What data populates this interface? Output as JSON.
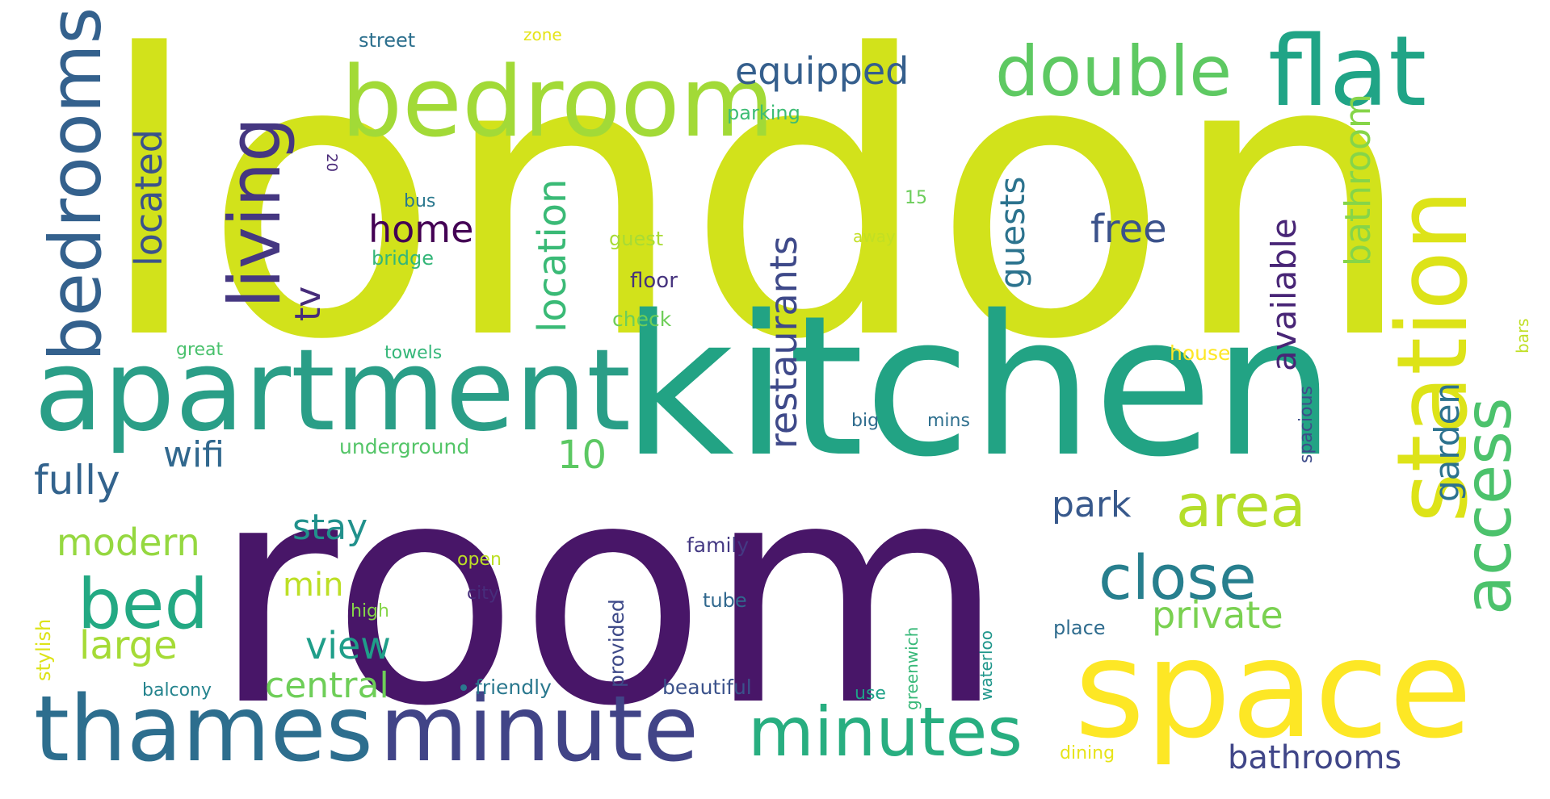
{
  "wordcloud": {
    "words": [
      {
        "text": "london",
        "color": "#d2e21b"
      },
      {
        "text": "room",
        "color": "#481668"
      },
      {
        "text": "kitchen",
        "color": "#22a384"
      },
      {
        "text": "apartment",
        "color": "#2a9e87"
      },
      {
        "text": "space",
        "color": "#fde725"
      },
      {
        "text": "bedroom",
        "color": "#a2da37"
      },
      {
        "text": "minute",
        "color": "#414487"
      },
      {
        "text": "thames",
        "color": "#2d6e8e"
      },
      {
        "text": "flat",
        "color": "#20a486"
      },
      {
        "text": "station",
        "color": "#dde318"
      },
      {
        "text": "bedrooms",
        "color": "#34618d"
      },
      {
        "text": "minutes",
        "color": "#28ae80"
      },
      {
        "text": "double",
        "color": "#5ec962"
      },
      {
        "text": "living",
        "color": "#453781"
      },
      {
        "text": "access",
        "color": "#4cc26c"
      },
      {
        "text": "bed",
        "color": "#23a983"
      },
      {
        "text": "close",
        "color": "#277f8e"
      },
      {
        "text": "area",
        "color": "#b5de2b"
      },
      {
        "text": "restaurants",
        "color": "#3e4989"
      },
      {
        "text": "located",
        "color": "#3b528b"
      },
      {
        "text": "location",
        "color": "#3aba76"
      },
      {
        "text": "equipped",
        "color": "#355f8d"
      },
      {
        "text": "available",
        "color": "#482576"
      },
      {
        "text": "bathroom",
        "color": "#86d549"
      },
      {
        "text": "guests",
        "color": "#2c738e"
      },
      {
        "text": "home",
        "color": "#440154"
      },
      {
        "text": "free",
        "color": "#3b528b"
      },
      {
        "text": "10",
        "color": "#5cc863"
      },
      {
        "text": "fully",
        "color": "#33638d"
      },
      {
        "text": "wifi",
        "color": "#31688e"
      },
      {
        "text": "modern",
        "color": "#95d840"
      },
      {
        "text": "park",
        "color": "#38598c"
      },
      {
        "text": "stay",
        "color": "#21918c"
      },
      {
        "text": "garden",
        "color": "#2c728e"
      },
      {
        "text": "private",
        "color": "#7ad151"
      },
      {
        "text": "large",
        "color": "#a5db36"
      },
      {
        "text": "min",
        "color": "#bddf26"
      },
      {
        "text": "view",
        "color": "#1f9e89"
      },
      {
        "text": "central",
        "color": "#6ece58"
      },
      {
        "text": "bathrooms",
        "color": "#404688"
      },
      {
        "text": "tv",
        "color": "#472c7a"
      },
      {
        "text": "underground",
        "color": "#54c568"
      },
      {
        "text": "street",
        "color": "#2d708e"
      },
      {
        "text": "zone",
        "color": "#e5e419"
      },
      {
        "text": "parking",
        "color": "#3dbc74"
      },
      {
        "text": "20",
        "color": "#482878"
      },
      {
        "text": "bus",
        "color": "#2a788e"
      },
      {
        "text": "15",
        "color": "#6ccd5a"
      },
      {
        "text": "guest",
        "color": "#a8db34"
      },
      {
        "text": "away",
        "color": "#c2df23"
      },
      {
        "text": "bridge",
        "color": "#34b679"
      },
      {
        "text": "floor",
        "color": "#46337e"
      },
      {
        "text": "check",
        "color": "#6ece58"
      },
      {
        "text": "great",
        "color": "#4ac16d"
      },
      {
        "text": "towels",
        "color": "#35b779"
      },
      {
        "text": "house",
        "color": "#fde725"
      },
      {
        "text": "bars",
        "color": "#c0df25"
      },
      {
        "text": "big",
        "color": "#2f6c8e"
      },
      {
        "text": "mins",
        "color": "#2e6f8e"
      },
      {
        "text": "spacious",
        "color": "#3e4c8a"
      },
      {
        "text": "family",
        "color": "#443983"
      },
      {
        "text": "open",
        "color": "#bddf26"
      },
      {
        "text": "city",
        "color": "#472d7b"
      },
      {
        "text": "high",
        "color": "#86d549"
      },
      {
        "text": "tube",
        "color": "#31688e"
      },
      {
        "text": "place",
        "color": "#2f6c8e"
      },
      {
        "text": "stylish",
        "color": "#dde318"
      },
      {
        "text": "provided",
        "color": "#3e4a89"
      },
      {
        "text": "greenwich",
        "color": "#37b878"
      },
      {
        "text": "waterloo",
        "color": "#1f968b"
      },
      {
        "text": "balcony",
        "color": "#25848e"
      },
      {
        "text": "friendly",
        "color": "#2a788e"
      },
      {
        "text": "beautiful",
        "color": "#3b528b"
      },
      {
        "text": "use",
        "color": "#1fa188"
      },
      {
        "text": "dining",
        "color": "#e7e419"
      }
    ]
  }
}
